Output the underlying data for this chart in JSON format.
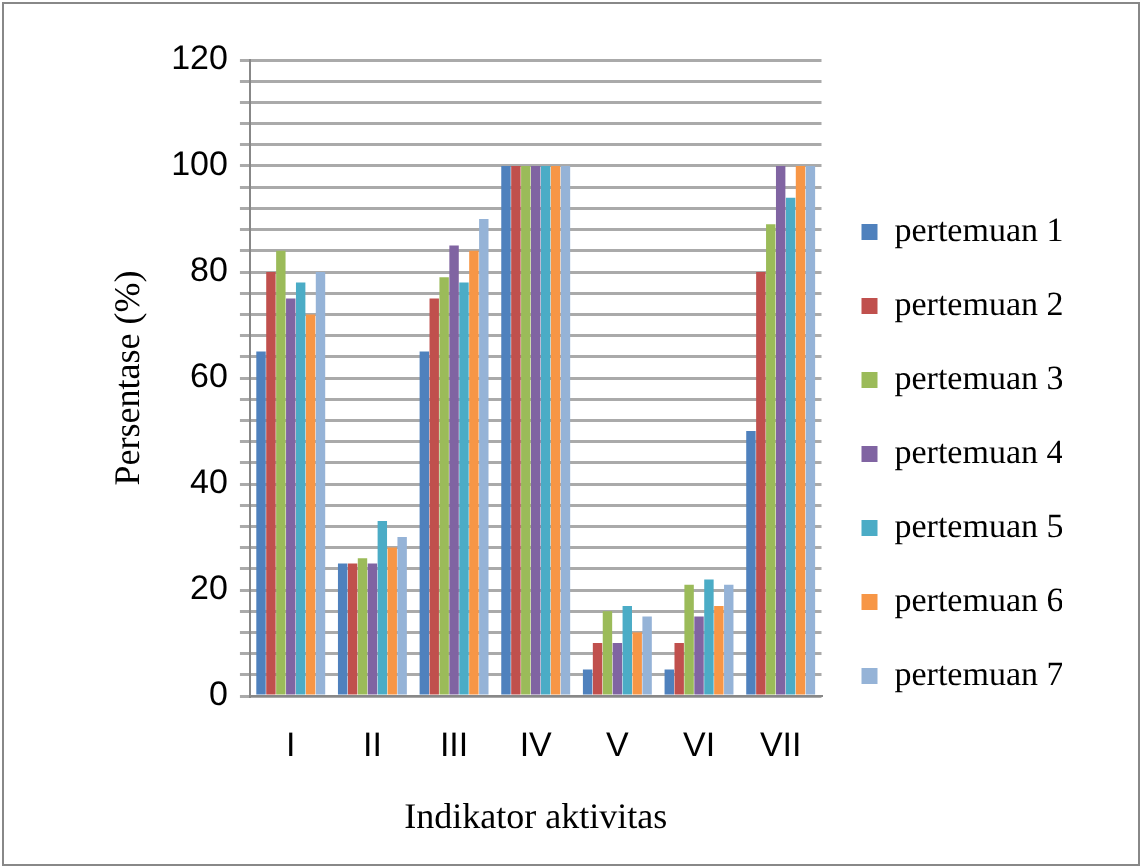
{
  "chart_data": {
    "type": "bar",
    "xlabel": "Indikator aktivitas",
    "ylabel": "Persentase (%)",
    "categories": [
      "I",
      "II",
      "III",
      "IV",
      "V",
      "VI",
      "VII"
    ],
    "series": [
      {
        "name": "pertemuan 1",
        "color": "#4f81bd",
        "values": [
          65,
          25,
          65,
          100,
          5,
          5,
          50
        ]
      },
      {
        "name": "pertemuan 2",
        "color": "#c0504d",
        "values": [
          80,
          25,
          75,
          100,
          10,
          10,
          80
        ]
      },
      {
        "name": "pertemuan 3",
        "color": "#9bbb59",
        "values": [
          84,
          26,
          79,
          100,
          16,
          21,
          89
        ]
      },
      {
        "name": "pertemuan 4",
        "color": "#8064a2",
        "values": [
          75,
          25,
          85,
          100,
          10,
          15,
          100
        ]
      },
      {
        "name": "pertemuan 5",
        "color": "#4bacc6",
        "values": [
          78,
          33,
          78,
          100,
          17,
          22,
          94
        ]
      },
      {
        "name": "pertemuan 6",
        "color": "#f79646",
        "values": [
          72,
          28,
          84,
          100,
          12,
          17,
          100
        ]
      },
      {
        "name": "pertemuan 7",
        "color": "#95b3d7",
        "values": [
          80,
          30,
          90,
          100,
          15,
          21,
          100
        ]
      }
    ],
    "ylim": [
      0,
      120
    ],
    "yticks": [
      0,
      {
        "value": 4,
        "label": null
      },
      {
        "value": 8,
        "label": null
      },
      {
        "value": 12,
        "label": null
      },
      {
        "value": 16,
        "label": null
      },
      20,
      {
        "value": 24,
        "label": null
      },
      {
        "value": 28,
        "label": null
      },
      {
        "value": 32,
        "label": null
      },
      {
        "value": 36,
        "label": null
      },
      40,
      {
        "value": 44,
        "label": null
      },
      {
        "value": 48,
        "label": null
      },
      {
        "value": 52,
        "label": null
      },
      {
        "value": 56,
        "label": null
      },
      60,
      {
        "value": 64,
        "label": null
      },
      {
        "value": 68,
        "label": null
      },
      {
        "value": 72,
        "label": null
      },
      {
        "value": 76,
        "label": null
      },
      80,
      {
        "value": 84,
        "label": null
      },
      {
        "value": 88,
        "label": null
      },
      {
        "value": 92,
        "label": null
      },
      {
        "value": 96,
        "label": null
      },
      100,
      {
        "value": 104,
        "label": null
      },
      {
        "value": 108,
        "label": null
      },
      {
        "value": 112,
        "label": null
      },
      {
        "value": 116,
        "label": null
      },
      120
    ],
    "grid": "y",
    "legend": "right"
  }
}
